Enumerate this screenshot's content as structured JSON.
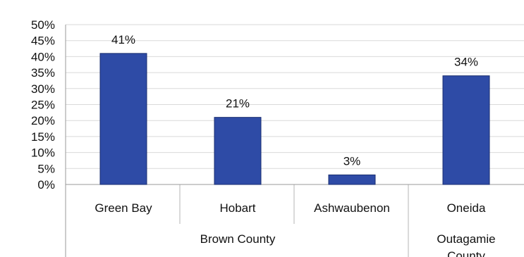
{
  "chart_data": {
    "type": "bar",
    "title": "",
    "xlabel": "",
    "ylabel": "",
    "categories": [
      "Green Bay",
      "Hobart",
      "Ashwaubenon",
      "Oneida"
    ],
    "groups": [
      {
        "label": "Brown County",
        "categories": [
          "Green Bay",
          "Hobart",
          "Ashwaubenon"
        ]
      },
      {
        "label": "Outagamie County",
        "categories": [
          "Oneida"
        ]
      }
    ],
    "values": [
      41,
      21,
      3,
      34
    ],
    "data_labels": [
      "41%",
      "21%",
      "3%",
      "34%"
    ],
    "ylim": [
      0,
      50
    ],
    "yticks": [
      0,
      5,
      10,
      15,
      20,
      25,
      30,
      35,
      40,
      45,
      50
    ],
    "ytick_format": "percent",
    "grid": true,
    "bar_color": "#2E4BA6",
    "bar_edge_color": "#1A2E70",
    "grid_color": "#D9D9D9"
  }
}
